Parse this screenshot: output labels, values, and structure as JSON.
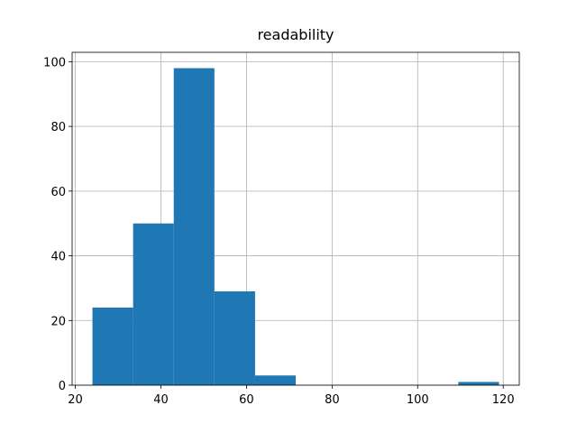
{
  "chart_data": {
    "type": "histogram",
    "title": "readability",
    "bins": [
      24,
      33.5,
      43,
      52.5,
      62,
      71.5,
      81,
      90.5,
      100,
      109.5,
      119
    ],
    "values": [
      24,
      50,
      98,
      29,
      3,
      0,
      0,
      0,
      0,
      1
    ],
    "color": "#1f77b4",
    "xlim": [
      19.25,
      123.75
    ],
    "xticks": [
      20,
      40,
      60,
      80,
      100,
      120
    ],
    "ylim": [
      0,
      102.9
    ],
    "yticks": [
      0,
      20,
      40,
      60,
      80,
      100
    ],
    "grid": true
  }
}
